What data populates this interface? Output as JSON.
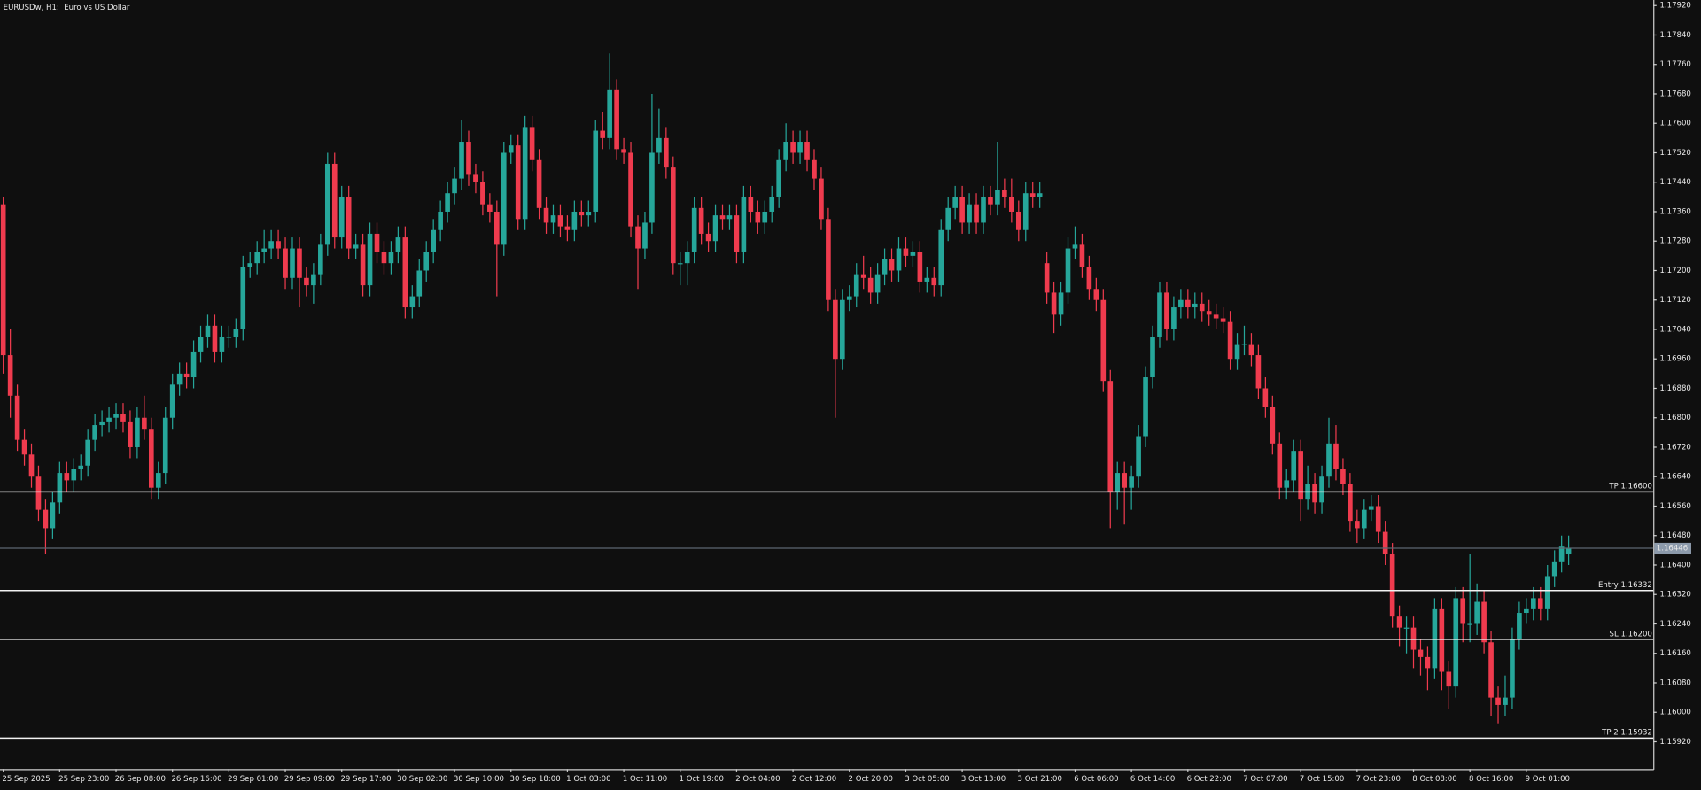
{
  "chart_data": {
    "type": "candlestick",
    "title": "EURUSDw, H1:  Euro vs US Dollar",
    "up_color": "#26a69a",
    "down_color": "#ef3b4e",
    "background": "#0f0f0f",
    "grid": false,
    "categories": [
      "25 Sep 2025",
      null,
      null,
      null,
      null,
      null,
      null,
      null,
      "25 Sep 23:00",
      null,
      null,
      null,
      null,
      null,
      null,
      null,
      "26 Sep 08:00",
      null,
      null,
      null,
      null,
      null,
      null,
      null,
      "26 Sep 16:00",
      null,
      null,
      null,
      null,
      null,
      null,
      null,
      "29 Sep 01:00",
      null,
      null,
      null,
      null,
      null,
      null,
      null,
      "29 Sep 09:00",
      null,
      null,
      null,
      null,
      null,
      null,
      null,
      "29 Sep 17:00",
      null,
      null,
      null,
      null,
      null,
      null,
      null,
      "30 Sep 02:00",
      null,
      null,
      null,
      null,
      null,
      null,
      null,
      "30 Sep 10:00",
      null,
      null,
      null,
      null,
      null,
      null,
      null,
      "30 Sep 18:00",
      null,
      null,
      null,
      null,
      null,
      null,
      null,
      "1 Oct 03:00",
      null,
      null,
      null,
      null,
      null,
      null,
      null,
      "1 Oct 11:00",
      null,
      null,
      null,
      null,
      null,
      null,
      null,
      "1 Oct 19:00",
      null,
      null,
      null,
      null,
      null,
      null,
      null,
      "2 Oct 04:00",
      null,
      null,
      null,
      null,
      null,
      null,
      null,
      "2 Oct 12:00",
      null,
      null,
      null,
      null,
      null,
      null,
      null,
      "2 Oct 20:00",
      null,
      null,
      null,
      null,
      null,
      null,
      null,
      "3 Oct 05:00",
      null,
      null,
      null,
      null,
      null,
      null,
      null,
      "3 Oct 13:00",
      null,
      null,
      null,
      null,
      null,
      null,
      null,
      "3 Oct 21:00",
      null,
      null,
      null,
      null,
      null,
      null,
      null,
      "6 Oct 06:00",
      null,
      null,
      null,
      null,
      null,
      null,
      null,
      "6 Oct 14:00",
      null,
      null,
      null,
      null,
      null,
      null,
      null,
      "6 Oct 22:00",
      null,
      null,
      null,
      null,
      null,
      null,
      null,
      "7 Oct 07:00",
      null,
      null,
      null,
      null,
      null,
      null,
      null,
      "7 Oct 15:00",
      null,
      null,
      null,
      null,
      null,
      null,
      null,
      "7 Oct 23:00",
      null,
      null,
      null,
      null,
      null,
      null,
      null,
      "8 Oct 08:00",
      null,
      null,
      null,
      null,
      null,
      null,
      null,
      "8 Oct 16:00",
      null,
      null,
      null,
      null,
      null,
      null,
      null,
      "9 Oct 01:00",
      null,
      null,
      null,
      null,
      null,
      null
    ],
    "open": [
      1.1738,
      1.1697,
      1.1686,
      1.1674,
      1.167,
      1.1664,
      1.1655,
      1.165,
      1.1657,
      1.1665,
      1.1663,
      1.1666,
      1.1667,
      1.1674,
      1.1678,
      1.1679,
      1.168,
      1.1681,
      1.1679,
      1.1672,
      1.168,
      1.1677,
      1.1661,
      1.1665,
      1.168,
      1.1689,
      1.1692,
      1.1691,
      1.1698,
      1.1702,
      1.1705,
      1.1698,
      1.1702,
      1.1702,
      1.1704,
      1.1721,
      1.1722,
      1.1725,
      1.1726,
      1.1728,
      1.1726,
      1.1718,
      1.1726,
      1.1718,
      1.1716,
      1.1719,
      1.1727,
      1.1749,
      1.1729,
      1.174,
      1.1726,
      1.1727,
      1.1716,
      1.173,
      1.1725,
      1.1722,
      1.1725,
      1.1729,
      1.171,
      1.1713,
      1.172,
      1.1725,
      1.1731,
      1.1736,
      1.1741,
      1.1745,
      1.1755,
      1.1746,
      1.1744,
      1.1738,
      1.1736,
      1.1727,
      1.1752,
      1.1754,
      1.1734,
      1.1759,
      1.175,
      1.1737,
      1.1733,
      1.1735,
      1.1732,
      1.1731,
      1.1736,
      1.1735,
      1.1736,
      1.1758,
      1.1756,
      1.1769,
      1.1753,
      1.1752,
      1.1732,
      1.1726,
      1.1733,
      1.1752,
      1.1756,
      1.1748,
      1.1722,
      1.1722,
      1.1725,
      1.1737,
      1.173,
      1.1728,
      1.1735,
      1.1734,
      1.1735,
      1.1725,
      1.174,
      1.1736,
      1.1733,
      1.1736,
      1.174,
      1.175,
      1.1755,
      1.1752,
      1.1755,
      1.175,
      1.1745,
      1.1734,
      1.1712,
      1.1696,
      1.1712,
      1.1713,
      1.1719,
      1.1718,
      1.1714,
      1.1719,
      1.1723,
      1.172,
      1.1726,
      1.1724,
      1.1725,
      1.1717,
      1.1718,
      1.1716,
      1.1731,
      1.1737,
      1.174,
      1.1733,
      1.1738,
      1.1733,
      1.174,
      1.1738,
      1.1742,
      1.174,
      1.1736,
      1.1731,
      1.1741,
      1.174,
      1.1722,
      1.1714,
      1.1708,
      1.1714,
      1.1726,
      1.1727,
      1.1721,
      1.1715,
      1.1712,
      1.169,
      1.166,
      1.1665,
      1.1661,
      1.1664,
      1.1675,
      1.1691,
      1.1702,
      1.1714,
      1.1704,
      1.171,
      1.1712,
      1.171,
      1.1711,
      1.1709,
      1.1708,
      1.1707,
      1.1706,
      1.1696,
      1.17,
      1.17,
      1.1697,
      1.1688,
      1.1683,
      1.1673,
      1.1661,
      1.1663,
      1.1671,
      1.1658,
      1.1662,
      1.1657,
      1.1664,
      1.1673,
      1.1666,
      1.1662,
      1.1652,
      1.165,
      1.1655,
      1.1656,
      1.1649,
      1.1643,
      1.1626,
      1.1623,
      1.1623,
      1.1617,
      1.1615,
      1.1612,
      1.1628,
      1.1611,
      1.1607,
      1.1631,
      1.1624,
      1.1624,
      1.163,
      1.1619,
      1.1604,
      1.1602,
      1.1604,
      1.162,
      1.1627,
      1.1628,
      1.1631,
      1.1628,
      1.1637,
      1.1641,
      1.1643
    ],
    "high": [
      1.174,
      1.1704,
      1.1689,
      1.1677,
      1.1673,
      1.1667,
      1.1658,
      1.166,
      1.1668,
      1.1668,
      1.1669,
      1.167,
      1.1677,
      1.1681,
      1.1682,
      1.1683,
      1.1684,
      1.1684,
      1.1682,
      1.1683,
      1.1686,
      1.168,
      1.1668,
      1.1683,
      1.1692,
      1.1695,
      1.1695,
      1.1701,
      1.1705,
      1.1708,
      1.1708,
      1.1705,
      1.1705,
      1.1707,
      1.1724,
      1.1725,
      1.1728,
      1.1731,
      1.1731,
      1.1731,
      1.1729,
      1.1729,
      1.1729,
      1.1721,
      1.1722,
      1.173,
      1.1752,
      1.1752,
      1.1743,
      1.1743,
      1.173,
      1.173,
      1.1733,
      1.1733,
      1.1728,
      1.1728,
      1.1732,
      1.1732,
      1.1716,
      1.1723,
      1.1728,
      1.1734,
      1.1739,
      1.1744,
      1.1748,
      1.1761,
      1.1758,
      1.1749,
      1.1747,
      1.1741,
      1.1739,
      1.1755,
      1.1757,
      1.1757,
      1.1762,
      1.1762,
      1.1753,
      1.174,
      1.1738,
      1.1738,
      1.1735,
      1.1739,
      1.1739,
      1.1739,
      1.1761,
      1.1763,
      1.1779,
      1.1772,
      1.1756,
      1.1755,
      1.1735,
      1.1736,
      1.1768,
      1.1764,
      1.1759,
      1.1751,
      1.1725,
      1.1728,
      1.174,
      1.174,
      1.1733,
      1.1738,
      1.1738,
      1.1738,
      1.1738,
      1.1743,
      1.1743,
      1.1739,
      1.1739,
      1.1743,
      1.1753,
      1.176,
      1.1758,
      1.1758,
      1.1758,
      1.1753,
      1.1748,
      1.1737,
      1.1715,
      1.1715,
      1.1716,
      1.1722,
      1.1724,
      1.1721,
      1.1722,
      1.1726,
      1.1726,
      1.1729,
      1.1729,
      1.1728,
      1.1728,
      1.1721,
      1.1721,
      1.1734,
      1.174,
      1.1743,
      1.1743,
      1.1741,
      1.1741,
      1.1743,
      1.1743,
      1.1755,
      1.1745,
      1.1745,
      1.1739,
      1.1744,
      1.1744,
      1.1744,
      1.1725,
      1.1717,
      1.1717,
      1.1729,
      1.1732,
      1.173,
      1.1724,
      1.1718,
      1.1715,
      1.1693,
      1.1668,
      1.1668,
      1.1667,
      1.1678,
      1.1694,
      1.1705,
      1.1717,
      1.1717,
      1.1713,
      1.1715,
      1.1715,
      1.1714,
      1.1714,
      1.1712,
      1.1711,
      1.171,
      1.1709,
      1.1703,
      1.1705,
      1.1703,
      1.17,
      1.1691,
      1.1686,
      1.1676,
      1.1666,
      1.1674,
      1.1674,
      1.1667,
      1.1665,
      1.1667,
      1.168,
      1.1678,
      1.1669,
      1.1665,
      1.1655,
      1.1658,
      1.1659,
      1.1659,
      1.1652,
      1.1646,
      1.1629,
      1.1626,
      1.1626,
      1.162,
      1.1618,
      1.1631,
      1.1631,
      1.1614,
      1.1634,
      1.1634,
      1.1643,
      1.1635,
      1.1633,
      1.1622,
      1.1607,
      1.161,
      1.1623,
      1.163,
      1.1631,
      1.1634,
      1.1634,
      1.164,
      1.1644,
      1.1648,
      1.1648
    ],
    "low": [
      1.1692,
      1.168,
      1.1671,
      1.1667,
      1.1661,
      1.1652,
      1.1643,
      1.1647,
      1.1654,
      1.166,
      1.166,
      1.1663,
      1.1664,
      1.1671,
      1.1675,
      1.1676,
      1.1677,
      1.1676,
      1.1669,
      1.1669,
      1.1674,
      1.1658,
      1.1658,
      1.1662,
      1.1677,
      1.1686,
      1.1688,
      1.1688,
      1.1695,
      1.1699,
      1.1695,
      1.1695,
      1.1699,
      1.1699,
      1.1701,
      1.1718,
      1.1719,
      1.1722,
      1.1723,
      1.1723,
      1.1715,
      1.1715,
      1.171,
      1.1713,
      1.1711,
      1.1716,
      1.1724,
      1.1726,
      1.1726,
      1.1723,
      1.1723,
      1.1713,
      1.1713,
      1.1722,
      1.1719,
      1.1719,
      1.1722,
      1.1707,
      1.1707,
      1.171,
      1.1717,
      1.1722,
      1.1728,
      1.1733,
      1.1738,
      1.1742,
      1.1743,
      1.1741,
      1.1735,
      1.1733,
      1.1713,
      1.1724,
      1.1749,
      1.1731,
      1.1731,
      1.1747,
      1.1734,
      1.173,
      1.173,
      1.1729,
      1.1728,
      1.1728,
      1.1732,
      1.1732,
      1.1733,
      1.1753,
      1.1753,
      1.175,
      1.1749,
      1.1729,
      1.1715,
      1.1723,
      1.173,
      1.1749,
      1.1745,
      1.1719,
      1.1716,
      1.1716,
      1.1722,
      1.1727,
      1.1725,
      1.1725,
      1.1731,
      1.1731,
      1.1722,
      1.1722,
      1.1733,
      1.173,
      1.173,
      1.1733,
      1.1737,
      1.1747,
      1.1749,
      1.1749,
      1.1747,
      1.1742,
      1.1731,
      1.1709,
      1.168,
      1.1693,
      1.1709,
      1.171,
      1.1715,
      1.1711,
      1.1711,
      1.1716,
      1.1717,
      1.1717,
      1.1721,
      1.1721,
      1.1714,
      1.1714,
      1.1713,
      1.1713,
      1.1728,
      1.1734,
      1.173,
      1.173,
      1.173,
      1.173,
      1.1735,
      1.1735,
      1.1737,
      1.1733,
      1.1728,
      1.1728,
      1.1737,
      1.1737,
      1.1711,
      1.1703,
      1.1705,
      1.1711,
      1.1723,
      1.1718,
      1.1712,
      1.1709,
      1.1687,
      1.165,
      1.1655,
      1.1651,
      1.1655,
      1.1661,
      1.1672,
      1.1688,
      1.1699,
      1.1701,
      1.1701,
      1.1707,
      1.1707,
      1.1707,
      1.1706,
      1.1705,
      1.1704,
      1.1703,
      1.1693,
      1.1693,
      1.1697,
      1.1694,
      1.1685,
      1.168,
      1.167,
      1.1658,
      1.1658,
      1.166,
      1.1652,
      1.1655,
      1.1654,
      1.1654,
      1.1661,
      1.1663,
      1.1659,
      1.1649,
      1.1646,
      1.1647,
      1.1652,
      1.1646,
      1.164,
      1.1623,
      1.1618,
      1.1616,
      1.1612,
      1.161,
      1.1606,
      1.1609,
      1.1606,
      1.1601,
      1.1604,
      1.1619,
      1.1619,
      1.1621,
      1.1616,
      1.1599,
      1.1597,
      1.1599,
      1.1601,
      1.1617,
      1.1624,
      1.1625,
      1.1625,
      1.1625,
      1.1634,
      1.1638,
      1.164
    ],
    "close": [
      1.1697,
      1.1686,
      1.1674,
      1.167,
      1.1664,
      1.1655,
      1.165,
      1.1657,
      1.1665,
      1.1663,
      1.1666,
      1.1667,
      1.1674,
      1.1678,
      1.1679,
      1.168,
      1.1681,
      1.1679,
      1.1672,
      1.168,
      1.1677,
      1.1661,
      1.1665,
      1.168,
      1.1689,
      1.1692,
      1.1691,
      1.1698,
      1.1702,
      1.1705,
      1.1698,
      1.1702,
      1.1702,
      1.1704,
      1.1721,
      1.1722,
      1.1725,
      1.1726,
      1.1728,
      1.1726,
      1.1718,
      1.1726,
      1.1718,
      1.1716,
      1.1719,
      1.1727,
      1.1749,
      1.1729,
      1.174,
      1.1726,
      1.1727,
      1.1716,
      1.173,
      1.1725,
      1.1722,
      1.1725,
      1.1729,
      1.171,
      1.1713,
      1.172,
      1.1725,
      1.1731,
      1.1736,
      1.1741,
      1.1745,
      1.1755,
      1.1746,
      1.1744,
      1.1738,
      1.1736,
      1.1727,
      1.1752,
      1.1754,
      1.1734,
      1.1759,
      1.175,
      1.1737,
      1.1733,
      1.1735,
      1.1732,
      1.1731,
      1.1736,
      1.1735,
      1.1736,
      1.1758,
      1.1756,
      1.1769,
      1.1753,
      1.1752,
      1.1732,
      1.1726,
      1.1733,
      1.1752,
      1.1756,
      1.1748,
      1.1722,
      1.1722,
      1.1725,
      1.1737,
      1.173,
      1.1728,
      1.1735,
      1.1734,
      1.1735,
      1.1725,
      1.174,
      1.1736,
      1.1733,
      1.1736,
      1.174,
      1.175,
      1.1755,
      1.1752,
      1.1755,
      1.175,
      1.1745,
      1.1734,
      1.1712,
      1.1696,
      1.1712,
      1.1713,
      1.1719,
      1.1718,
      1.1714,
      1.1719,
      1.1723,
      1.172,
      1.1726,
      1.1724,
      1.1725,
      1.1717,
      1.1718,
      1.1716,
      1.1731,
      1.1737,
      1.174,
      1.1733,
      1.1738,
      1.1733,
      1.174,
      1.1738,
      1.1742,
      1.174,
      1.1736,
      1.1731,
      1.1741,
      1.174,
      1.1741,
      1.1714,
      1.1708,
      1.1714,
      1.1726,
      1.1727,
      1.1721,
      1.1715,
      1.1712,
      1.169,
      1.166,
      1.1665,
      1.1661,
      1.1664,
      1.1675,
      1.1691,
      1.1702,
      1.1714,
      1.1704,
      1.171,
      1.1712,
      1.171,
      1.1711,
      1.1709,
      1.1708,
      1.1707,
      1.1706,
      1.1696,
      1.17,
      1.17,
      1.1697,
      1.1688,
      1.1683,
      1.1673,
      1.1661,
      1.1663,
      1.1671,
      1.1658,
      1.1662,
      1.1657,
      1.1664,
      1.1673,
      1.1666,
      1.1662,
      1.1652,
      1.165,
      1.1655,
      1.1656,
      1.1649,
      1.1643,
      1.1626,
      1.1623,
      1.1623,
      1.1617,
      1.1615,
      1.1612,
      1.1628,
      1.1611,
      1.1607,
      1.1631,
      1.1624,
      1.1624,
      1.163,
      1.1619,
      1.1604,
      1.1602,
      1.1604,
      1.162,
      1.1627,
      1.1628,
      1.1631,
      1.1628,
      1.1637,
      1.1641,
      1.1645,
      1.16446
    ],
    "ylim": [
      1.15846,
      1.17935
    ],
    "yticks": [
      {
        "value": 1.1792,
        "label": "1.17920"
      },
      {
        "value": 1.1784,
        "label": "1.17840"
      },
      {
        "value": 1.1776,
        "label": "1.17760"
      },
      {
        "value": 1.1768,
        "label": "1.17680"
      },
      {
        "value": 1.176,
        "label": "1.17600"
      },
      {
        "value": 1.1752,
        "label": "1.17520"
      },
      {
        "value": 1.1744,
        "label": "1.17440"
      },
      {
        "value": 1.1736,
        "label": "1.17360"
      },
      {
        "value": 1.1728,
        "label": "1.17280"
      },
      {
        "value": 1.172,
        "label": "1.17200"
      },
      {
        "value": 1.1712,
        "label": "1.17120"
      },
      {
        "value": 1.1704,
        "label": "1.17040"
      },
      {
        "value": 1.1696,
        "label": "1.16960"
      },
      {
        "value": 1.1688,
        "label": "1.16880"
      },
      {
        "value": 1.168,
        "label": "1.16800"
      },
      {
        "value": 1.1672,
        "label": "1.16720"
      },
      {
        "value": 1.1664,
        "label": "1.16640"
      },
      {
        "value": 1.1656,
        "label": "1.16560"
      },
      {
        "value": 1.1648,
        "label": "1.16480"
      },
      {
        "value": 1.164,
        "label": "1.16400"
      },
      {
        "value": 1.1632,
        "label": "1.16320"
      },
      {
        "value": 1.1624,
        "label": "1.16240"
      },
      {
        "value": 1.1616,
        "label": "1.16160"
      },
      {
        "value": 1.1608,
        "label": "1.16080"
      },
      {
        "value": 1.16,
        "label": "1.16000"
      },
      {
        "value": 1.1592,
        "label": "1.15920"
      }
    ],
    "levels": [
      {
        "value": 1.166,
        "label": "TP 1.16600"
      },
      {
        "value": 1.16332,
        "label": "Entry 1.16332"
      },
      {
        "value": 1.162,
        "label": "SL 1.16200"
      },
      {
        "value": 1.15932,
        "label": "TP 2 1.15932"
      }
    ]
  }
}
